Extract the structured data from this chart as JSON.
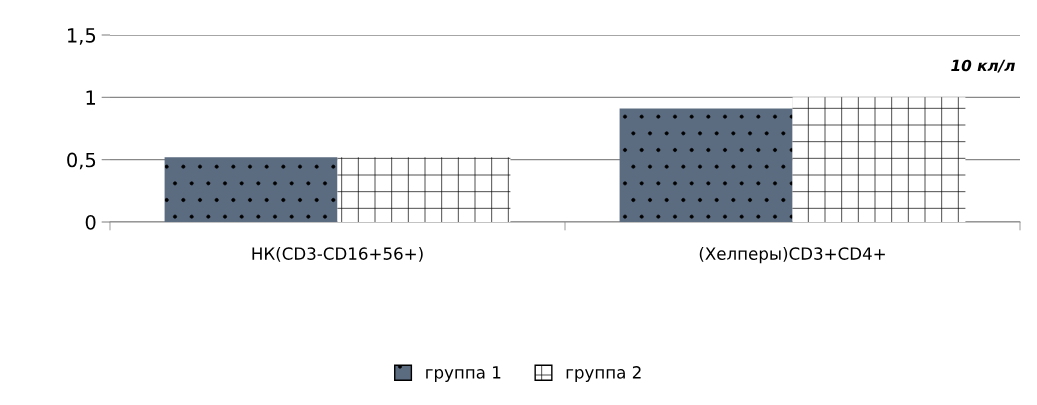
{
  "chart_data": {
    "type": "bar",
    "categories": [
      "НК(CD3-CD16+56+)",
      "(Хелперы)CD3+CD4+"
    ],
    "series": [
      {
        "name": "группа 1",
        "color": "#5b6b80",
        "values": [
          0.52,
          0.91
        ]
      },
      {
        "name": "группа 2",
        "color": "#ffffff",
        "values": [
          0.52,
          1.0
        ]
      }
    ],
    "ylim": [
      0,
      1.5
    ],
    "yticks": [
      0,
      {
        "value": 0.5,
        "label": "0,5"
      },
      1,
      {
        "value": 1.5,
        "label": "1,5"
      }
    ],
    "grid": "y",
    "legend": "bottom",
    "annotations": [
      "10 кл/л"
    ]
  }
}
